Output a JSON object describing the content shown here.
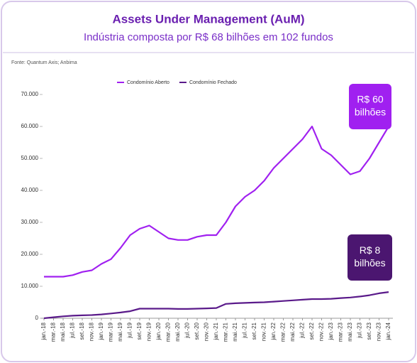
{
  "chart_data": {
    "type": "line",
    "title": "Assets Under Management (AuM)",
    "subtitle": "Indústria composta por R$ 68 bilhões em 102 fundos",
    "source": "Fonte: Quantum Axis; Anbima",
    "categories": [
      "jan.-18",
      "mar.-18",
      "mai.-18",
      "jul.-18",
      "set.-18",
      "nov.-18",
      "jan.-19",
      "mar.-19",
      "mai.-19",
      "jul.-19",
      "set.-19",
      "nov.-19",
      "jan.-20",
      "mar.-20",
      "mai.-20",
      "jul.-20",
      "set.-20",
      "nov.-20",
      "jan.-21",
      "mar.-21",
      "mai.-21",
      "jul.-21",
      "set.-21",
      "nov.-21",
      "jan.-22",
      "mar.-22",
      "mai.-22",
      "jul.-22",
      "set.-22",
      "nov.-22",
      "jan.-23",
      "mar.-23",
      "mai.-23",
      "jul.-23",
      "set.-23",
      "nov.-23",
      "jan.-24"
    ],
    "series": [
      {
        "name": "Condomínio Aberto",
        "color": "#a020f0",
        "values": [
          13000,
          13000,
          13000,
          13500,
          14500,
          15000,
          17000,
          18500,
          22000,
          26000,
          28000,
          29000,
          27000,
          25000,
          24500,
          24500,
          25500,
          26000,
          26000,
          30000,
          35000,
          38000,
          40000,
          43000,
          47000,
          50000,
          53000,
          56000,
          60000,
          53000,
          51000,
          48000,
          45000,
          46000,
          50000,
          55000,
          60000
        ]
      },
      {
        "name": "Condomínio Fechado",
        "color": "#5a1a8a",
        "values": [
          0,
          300,
          600,
          800,
          900,
          1000,
          1200,
          1500,
          1800,
          2200,
          3000,
          3000,
          3000,
          3000,
          2900,
          2900,
          3000,
          3100,
          3200,
          4500,
          4700,
          4800,
          4900,
          5000,
          5200,
          5400,
          5600,
          5800,
          6000,
          6000,
          6100,
          6300,
          6500,
          6800,
          7200,
          7800,
          8200
        ]
      }
    ],
    "ylim": [
      0,
      72000
    ],
    "yticks": [
      0,
      {
        "value": 10000,
        "label": "10.000"
      },
      {
        "value": 20000,
        "label": "20.000"
      },
      {
        "value": 30000,
        "label": "30.000"
      },
      {
        "value": 40000,
        "label": "40.000"
      },
      {
        "value": 50000,
        "label": "50.000"
      },
      {
        "value": 60000,
        "label": "60.000"
      },
      {
        "value": 70000,
        "label": "70.000"
      }
    ],
    "legend": "top",
    "annotations": [
      {
        "lines": [
          "R$ 60",
          "bilhões"
        ],
        "color": "#a020f0"
      },
      {
        "lines": [
          "R$ 8",
          "bilhões"
        ],
        "color": "#4b1670"
      }
    ]
  }
}
